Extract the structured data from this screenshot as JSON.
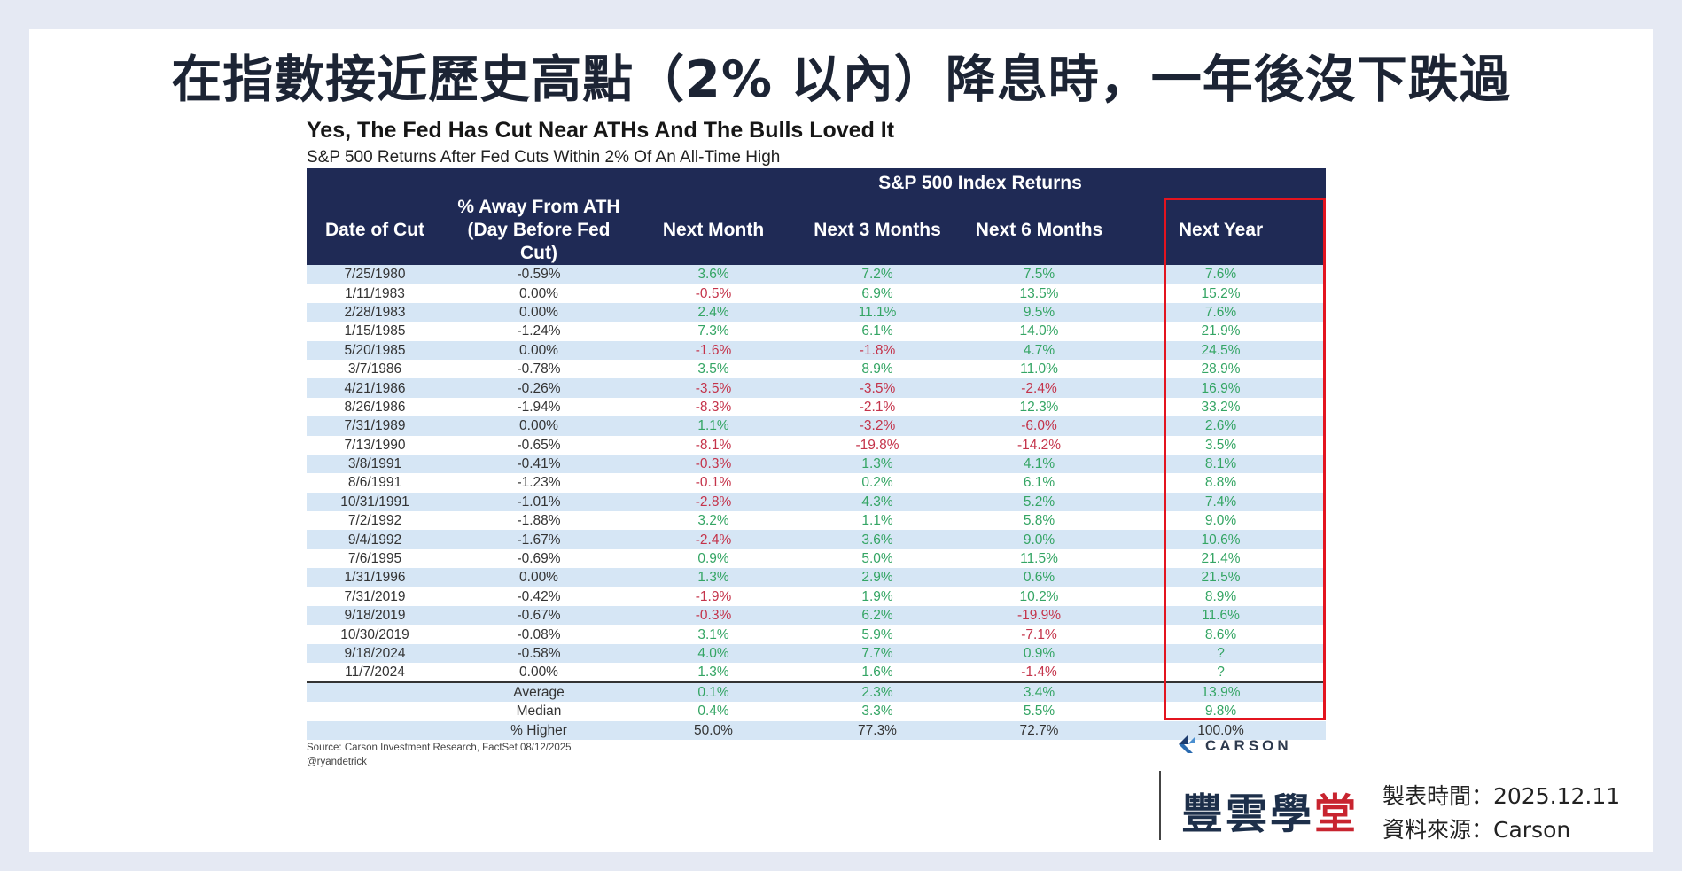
{
  "page": {
    "title": "在指數接近歷史高點（2% 以內）降息時，一年後沒下跌過"
  },
  "chart_data": {
    "type": "table",
    "title": "Yes, The Fed Has Cut Near ATHs And The Bulls Loved It",
    "subtitle": "S&P 500 Returns After Fed Cuts Within 2% Of An All-Time High",
    "group_header": "S&P 500 Index Returns",
    "columns": [
      "Date of Cut",
      "% Away From ATH (Day Before Fed Cut)",
      "Next Month",
      "Next 3 Months",
      "Next 6 Months",
      "Next Year"
    ],
    "column_labels": {
      "date": "Date of Cut",
      "away_line1": "% Away From ATH",
      "away_line2": "(Day Before Fed Cut)",
      "next_month": "Next Month",
      "next_3": "Next 3 Months",
      "next_6": "Next 6 Months",
      "next_year": "Next Year"
    },
    "rows": [
      [
        "7/25/1980",
        "-0.59%",
        "3.6%",
        "7.2%",
        "7.5%",
        "7.6%"
      ],
      [
        "1/11/1983",
        "0.00%",
        "-0.5%",
        "6.9%",
        "13.5%",
        "15.2%"
      ],
      [
        "2/28/1983",
        "0.00%",
        "2.4%",
        "11.1%",
        "9.5%",
        "7.6%"
      ],
      [
        "1/15/1985",
        "-1.24%",
        "7.3%",
        "6.1%",
        "14.0%",
        "21.9%"
      ],
      [
        "5/20/1985",
        "0.00%",
        "-1.6%",
        "-1.8%",
        "4.7%",
        "24.5%"
      ],
      [
        "3/7/1986",
        "-0.78%",
        "3.5%",
        "8.9%",
        "11.0%",
        "28.9%"
      ],
      [
        "4/21/1986",
        "-0.26%",
        "-3.5%",
        "-3.5%",
        "-2.4%",
        "16.9%"
      ],
      [
        "8/26/1986",
        "-1.94%",
        "-8.3%",
        "-2.1%",
        "12.3%",
        "33.2%"
      ],
      [
        "7/31/1989",
        "0.00%",
        "1.1%",
        "-3.2%",
        "-6.0%",
        "2.6%"
      ],
      [
        "7/13/1990",
        "-0.65%",
        "-8.1%",
        "-19.8%",
        "-14.2%",
        "3.5%"
      ],
      [
        "3/8/1991",
        "-0.41%",
        "-0.3%",
        "1.3%",
        "4.1%",
        "8.1%"
      ],
      [
        "8/6/1991",
        "-1.23%",
        "-0.1%",
        "0.2%",
        "6.1%",
        "8.8%"
      ],
      [
        "10/31/1991",
        "-1.01%",
        "-2.8%",
        "4.3%",
        "5.2%",
        "7.4%"
      ],
      [
        "7/2/1992",
        "-1.88%",
        "3.2%",
        "1.1%",
        "5.8%",
        "9.0%"
      ],
      [
        "9/4/1992",
        "-1.67%",
        "-2.4%",
        "3.6%",
        "9.0%",
        "10.6%"
      ],
      [
        "7/6/1995",
        "-0.69%",
        "0.9%",
        "5.0%",
        "11.5%",
        "21.4%"
      ],
      [
        "1/31/1996",
        "0.00%",
        "1.3%",
        "2.9%",
        "0.6%",
        "21.5%"
      ],
      [
        "7/31/2019",
        "-0.42%",
        "-1.9%",
        "1.9%",
        "10.2%",
        "8.9%"
      ],
      [
        "9/18/2019",
        "-0.67%",
        "-0.3%",
        "6.2%",
        "-19.9%",
        "11.6%"
      ],
      [
        "10/30/2019",
        "-0.08%",
        "3.1%",
        "5.9%",
        "-7.1%",
        "8.6%"
      ],
      [
        "9/18/2024",
        "-0.58%",
        "4.0%",
        "7.7%",
        "0.9%",
        "?"
      ],
      [
        "11/7/2024",
        "0.00%",
        "1.3%",
        "1.6%",
        "-1.4%",
        "?"
      ]
    ],
    "summary_rows": [
      [
        "Average",
        "0.1%",
        "2.3%",
        "3.4%",
        "13.9%"
      ],
      [
        "Median",
        "0.4%",
        "3.3%",
        "5.5%",
        "9.8%"
      ],
      [
        "% Higher",
        "50.0%",
        "77.3%",
        "72.7%",
        "100.0%"
      ]
    ],
    "colors": {
      "positive": "#34a564",
      "negative": "#c4334a",
      "header_bg": "#1f2a55",
      "stripe": "#d6e6f5",
      "highlight": "#e3141f"
    },
    "highlighted_column": "Next Year",
    "source": "Source: Carson Investment Research, FactSet 08/12/2025",
    "handle": "@ryandetrick"
  },
  "footer": {
    "carson_logo": "CARSON",
    "brand_part1": "豐雲學",
    "brand_part2": "堂",
    "made_time": "製表時間：2025.12.11",
    "data_source": "資料來源：Carson"
  }
}
